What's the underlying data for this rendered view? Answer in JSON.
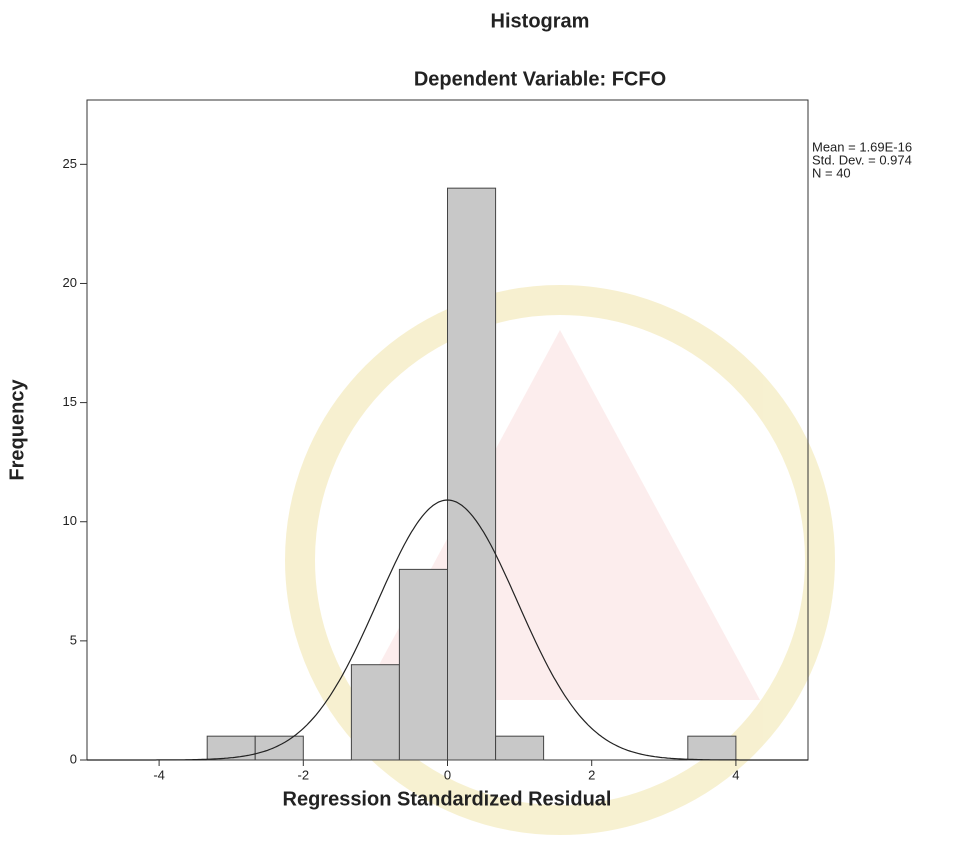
{
  "chart_data": {
    "type": "histogram",
    "title": "Histogram",
    "subtitle": "Dependent Variable: FCFO",
    "x_label": "Regression Standardized Residual",
    "y_label": "Frequency",
    "bins": [
      -3.333,
      -2.667,
      -2,
      -1.333,
      -0.667,
      0,
      0.667,
      1.333,
      2,
      2.667,
      3.333,
      4
    ],
    "values": [
      1,
      1,
      0,
      4,
      8,
      24,
      1,
      0,
      0,
      0,
      1
    ],
    "color": "#c8c8c8",
    "xlim": [
      -5,
      5
    ],
    "xticks": [
      -4,
      -2,
      0,
      2,
      4
    ],
    "ylim": [
      0,
      27.7
    ],
    "yticks": [
      0,
      5,
      10,
      15,
      20,
      25
    ],
    "stats": [
      {
        "value": 1.69e-16,
        "label": "Mean = 1.69E-16"
      },
      {
        "value": 0.974,
        "label": "Std. Dev. = 0.974"
      },
      {
        "value": 40,
        "label": "N = 40"
      }
    ],
    "normal_curve": true,
    "grid": false
  }
}
